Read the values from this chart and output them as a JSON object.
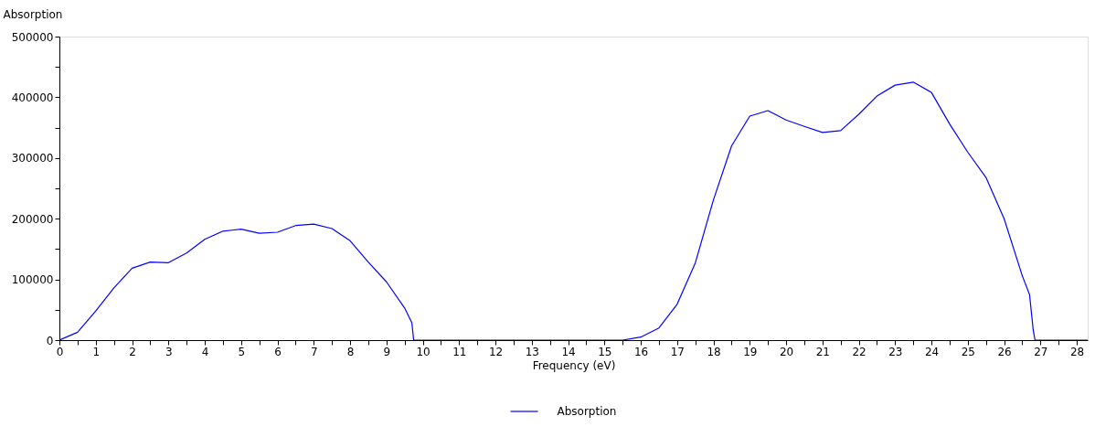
{
  "chart_data": {
    "type": "line",
    "xlabel": "Frequency (eV)",
    "ylabel": "Absorption",
    "x": [
      0,
      0.5,
      1,
      1.5,
      2,
      2.5,
      3,
      3.5,
      4,
      4.5,
      5,
      5.5,
      6,
      6.5,
      7,
      7.5,
      8,
      8.5,
      9,
      9.5,
      9.7,
      9.75,
      12,
      15.5,
      16,
      16.5,
      17,
      17.5,
      18,
      18.5,
      19,
      19.5,
      20,
      20.5,
      21,
      21.5,
      22,
      22.5,
      23,
      23.5,
      24,
      24.5,
      25,
      25.5,
      26,
      26.5,
      26.7,
      26.8,
      26.85,
      28.3
    ],
    "series": [
      {
        "name": "Absorption",
        "color": "#0000ff",
        "values": [
          0,
          13000,
          48000,
          86000,
          118500,
          128500,
          127500,
          143500,
          166000,
          179500,
          182700,
          176000,
          177700,
          188700,
          191000,
          183700,
          163700,
          128500,
          96000,
          53000,
          28600,
          0,
          0,
          0,
          5000,
          20000,
          59000,
          127000,
          231000,
          320000,
          369000,
          378000,
          362500,
          352000,
          342000,
          345000,
          372000,
          402000,
          420000,
          425000,
          408000,
          356000,
          309500,
          268000,
          200000,
          106000,
          75000,
          17000,
          0,
          0
        ]
      }
    ],
    "xlim": [
      0,
      28.3
    ],
    "xticks": [
      0,
      {
        "value": 0.5,
        "label": null
      },
      1,
      {
        "value": 1.5,
        "label": null
      },
      2,
      {
        "value": 2.5,
        "label": null
      },
      3,
      {
        "value": 3.5,
        "label": null
      },
      4,
      {
        "value": 4.5,
        "label": null
      },
      5,
      {
        "value": 5.5,
        "label": null
      },
      6,
      {
        "value": 6.5,
        "label": null
      },
      7,
      {
        "value": 7.5,
        "label": null
      },
      8,
      {
        "value": 8.5,
        "label": null
      },
      9,
      {
        "value": 9.5,
        "label": null
      },
      10,
      {
        "value": 10.5,
        "label": null
      },
      11,
      {
        "value": 11.5,
        "label": null
      },
      12,
      {
        "value": 12.5,
        "label": null
      },
      13,
      {
        "value": 13.5,
        "label": null
      },
      14,
      {
        "value": 14.5,
        "label": null
      },
      15,
      {
        "value": 15.5,
        "label": null
      },
      16,
      {
        "value": 16.5,
        "label": null
      },
      17,
      {
        "value": 17.5,
        "label": null
      },
      18,
      {
        "value": 18.5,
        "label": null
      },
      19,
      {
        "value": 19.5,
        "label": null
      },
      20,
      {
        "value": 20.5,
        "label": null
      },
      21,
      {
        "value": 21.5,
        "label": null
      },
      22,
      {
        "value": 22.5,
        "label": null
      },
      23,
      {
        "value": 23.5,
        "label": null
      },
      24,
      {
        "value": 24.5,
        "label": null
      },
      25,
      {
        "value": 25.5,
        "label": null
      },
      26,
      {
        "value": 26.5,
        "label": null
      },
      27,
      {
        "value": 27.5,
        "label": null
      },
      28
    ],
    "ylim": [
      0,
      500000
    ],
    "yticks": [
      0,
      {
        "value": 50000,
        "label": null
      },
      100000,
      {
        "value": 150000,
        "label": null
      },
      200000,
      {
        "value": 250000,
        "label": null
      },
      300000,
      {
        "value": 350000,
        "label": null
      },
      400000,
      {
        "value": 450000,
        "label": null
      },
      500000
    ],
    "grid": false,
    "legend": "bottom",
    "marker": "none",
    "line_style": "solid"
  }
}
